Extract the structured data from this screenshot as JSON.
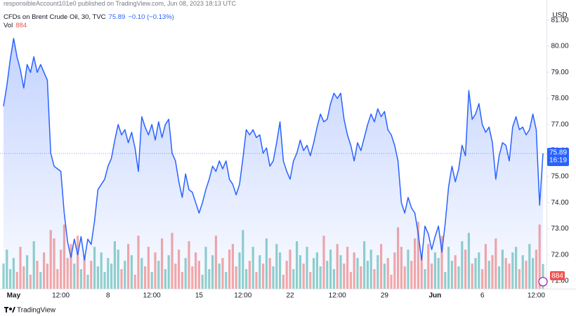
{
  "published": "responsibleAccount101e0 published on TradingView.com, Jun 08, 2023 18:13 UTC",
  "brand": "TradingView",
  "chart_data": {
    "type": "line",
    "title": "CFDs on Brent Crude Oil, 30, TVC",
    "change": "−0.10 (−0.13%)",
    "volume_label": "Vol",
    "currency": "USD",
    "countdown": "16:19",
    "categories": [
      null,
      null,
      null,
      "May",
      null,
      null,
      null,
      null,
      null,
      null,
      null,
      null,
      null,
      null,
      null,
      null,
      null,
      "12:00",
      null,
      null,
      null,
      null,
      null,
      null,
      null,
      null,
      null,
      null,
      null,
      null,
      null,
      "8",
      null,
      null,
      null,
      null,
      null,
      null,
      null,
      null,
      null,
      null,
      null,
      null,
      "12:00",
      null,
      null,
      null,
      null,
      null,
      null,
      null,
      null,
      null,
      null,
      null,
      null,
      null,
      "15",
      null,
      null,
      null,
      null,
      null,
      null,
      null,
      null,
      null,
      null,
      null,
      null,
      "12:00",
      null,
      null,
      null,
      null,
      null,
      null,
      null,
      null,
      null,
      null,
      null,
      null,
      null,
      "22",
      null,
      null,
      null,
      null,
      null,
      null,
      null,
      null,
      null,
      null,
      null,
      null,
      null,
      "12:00",
      null,
      null,
      null,
      null,
      null,
      null,
      null,
      null,
      null,
      null,
      null,
      null,
      null,
      "29",
      null,
      null,
      null,
      null,
      null,
      null,
      null,
      null,
      null,
      null,
      null,
      null,
      null,
      null,
      "Jun",
      null,
      null,
      null,
      null,
      null,
      null,
      null,
      null,
      null,
      null,
      null,
      null,
      null,
      "6",
      null,
      null,
      null,
      null,
      null,
      null,
      null,
      null,
      null,
      null,
      null,
      null,
      null,
      null,
      null,
      "12:00",
      null,
      null
    ],
    "series": [
      {
        "color": "#2962ff",
        "values": [
          77.7,
          78.5,
          79.5,
          80.3,
          79.6,
          79.1,
          78.4,
          79.3,
          79.0,
          79.6,
          79.0,
          79.3,
          79.0,
          78.7,
          75.9,
          75.4,
          75.3,
          75.2,
          73.6,
          72.5,
          71.9,
          72.6,
          72.0,
          72.7,
          71.8,
          72.6,
          72.4,
          73.3,
          74.5,
          74.7,
          74.9,
          75.4,
          75.7,
          76.4,
          77.0,
          76.6,
          76.8,
          76.3,
          76.7,
          76.1,
          75.2,
          77.3,
          76.9,
          76.6,
          77.0,
          76.4,
          77.1,
          76.5,
          77.0,
          77.2,
          75.9,
          75.6,
          74.8,
          74.2,
          75.1,
          74.5,
          74.4,
          74.0,
          73.6,
          74.0,
          74.5,
          74.9,
          75.4,
          75.2,
          75.6,
          75.3,
          75.6,
          74.9,
          74.7,
          74.3,
          74.7,
          75.7,
          76.8,
          76.6,
          76.8,
          76.5,
          76.6,
          75.9,
          76.1,
          75.4,
          75.6,
          76.3,
          77.1,
          75.6,
          75.2,
          74.9,
          75.6,
          75.9,
          76.4,
          76.0,
          76.2,
          75.8,
          76.3,
          76.9,
          77.4,
          77.1,
          77.2,
          77.8,
          78.2,
          78.0,
          78.2,
          77.2,
          76.6,
          76.2,
          75.6,
          76.3,
          76.0,
          76.5,
          77.0,
          77.4,
          77.1,
          77.6,
          77.3,
          77.5,
          76.8,
          76.6,
          76.2,
          75.6,
          74.0,
          73.6,
          74.2,
          73.8,
          73.6,
          72.8,
          71.8,
          73.1,
          72.8,
          72.2,
          72.7,
          73.1,
          72.1,
          73.2,
          74.6,
          75.4,
          74.8,
          75.3,
          76.2,
          75.8,
          78.3,
          77.2,
          77.4,
          77.8,
          77.0,
          76.7,
          76.9,
          76.3,
          74.9,
          75.8,
          76.3,
          76.2,
          75.6,
          76.9,
          77.3,
          76.8,
          76.9,
          76.6,
          76.8,
          77.4,
          76.8,
          73.9,
          75.89
        ]
      },
      {
        "type": "bar",
        "axis": "y2",
        "up_color": "#26a69a",
        "down_color": "#ef5350",
        "values": [
          900,
          1400,
          700,
          1100,
          600,
          1500,
          800,
          1200,
          500,
          1700,
          1000,
          600,
          1300,
          900,
          2100,
          1800,
          700,
          1400,
          2300,
          1100,
          1600,
          900,
          1900,
          700,
          1200,
          500,
          1000,
          1500,
          800,
          1300,
          600,
          1100,
          900,
          1700,
          1400,
          700,
          1000,
          1600,
          1200,
          500,
          1900,
          1100,
          800,
          1500,
          600,
          1300,
          1000,
          1800,
          700,
          1200,
          2000,
          900,
          1400,
          600,
          1100,
          1700,
          800,
          1300,
          1000,
          500,
          1500,
          700,
          1200,
          1900,
          900,
          1100,
          600,
          1400,
          1600,
          800,
          1300,
          2100,
          700,
          1000,
          1500,
          600,
          1200,
          900,
          1800,
          1100,
          800,
          1600,
          1300,
          500,
          1000,
          1400,
          700,
          1700,
          1200,
          900,
          1500,
          600,
          1100,
          1300,
          800,
          1900,
          1000,
          1400,
          700,
          1600,
          1200,
          900,
          1500,
          600,
          1300,
          1100,
          800,
          1700,
          1000,
          1400,
          700,
          1200,
          1600,
          900,
          1100,
          500,
          1300,
          2200,
          1500,
          800,
          1400,
          1000,
          1800,
          2400,
          1200,
          700,
          1600,
          900,
          1300,
          1100,
          1900,
          600,
          1500,
          1000,
          1200,
          800,
          1700,
          1400,
          2000,
          900,
          1100,
          1300,
          700,
          1600,
          1000,
          1200,
          1800,
          800,
          1400,
          1100,
          900,
          1300,
          1500,
          700,
          1200,
          1000,
          1600,
          1100,
          1400,
          2300,
          884
        ]
      }
    ],
    "ylim": [
      70.7,
      81.4
    ],
    "yticks": [
      {
        "value": 71,
        "label": "71.00"
      },
      {
        "value": 72,
        "label": "72.00"
      },
      {
        "value": 73,
        "label": "73.00"
      },
      {
        "value": 74,
        "label": "74.00"
      },
      {
        "value": 75,
        "label": "75.00"
      },
      {
        "value": 76,
        "label": "76.00"
      },
      {
        "value": 77,
        "label": "77.00"
      },
      {
        "value": 78,
        "label": "78.00"
      },
      {
        "value": 79,
        "label": "79.00"
      },
      {
        "value": 80,
        "label": "80.00"
      },
      {
        "value": 81,
        "label": "81.00"
      }
    ],
    "y2lim": [
      0,
      10000
    ],
    "grid": false
  }
}
